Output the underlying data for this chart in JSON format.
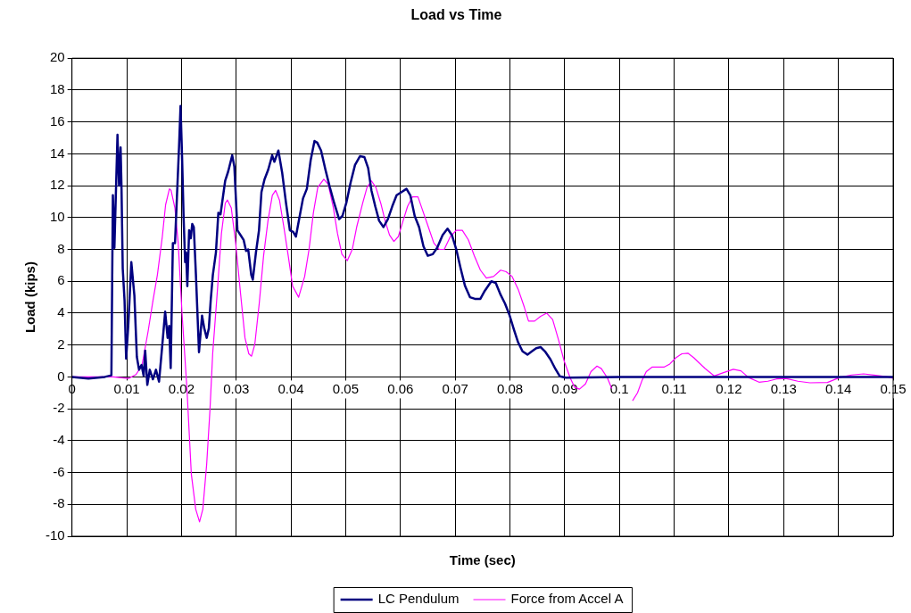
{
  "chart_data": {
    "type": "line",
    "title": "Load vs Time",
    "xlabel": "Time (sec)",
    "ylabel": "Load (kips)",
    "xlim": [
      0,
      0.15
    ],
    "ylim": [
      -10,
      20
    ],
    "xticks": [
      0,
      0.01,
      0.02,
      0.03,
      0.04,
      0.05,
      0.06,
      0.07,
      0.08,
      0.09,
      0.1,
      0.11,
      0.12,
      0.13,
      0.14,
      0.15
    ],
    "yticks": [
      -10,
      -8,
      -6,
      -4,
      -2,
      0,
      2,
      4,
      6,
      8,
      10,
      12,
      14,
      16,
      18,
      20
    ],
    "grid": true,
    "legend": "bottom",
    "marker": "none",
    "line_style": "solid",
    "series": [
      {
        "name": "LC Pendulum",
        "color": "#000080",
        "x": [
          0,
          0.003,
          0.006,
          0.0072,
          0.00747,
          0.00775,
          0.00831,
          0.0086,
          0.00888,
          0.00904,
          0.00927,
          0.0096,
          0.00989,
          0.01028,
          0.01084,
          0.0114,
          0.01185,
          0.01225,
          0.0127,
          0.01309,
          0.01337,
          0.01376,
          0.01421,
          0.01478,
          0.01534,
          0.0159,
          0.01646,
          0.01702,
          0.01747,
          0.01775,
          0.01803,
          0.01843,
          0.01882,
          0.01916,
          0.01955,
          0.01983,
          0.02011,
          0.02039,
          0.02067,
          0.02084,
          0.02107,
          0.0214,
          0.02169,
          0.02197,
          0.02225,
          0.02264,
          0.0232,
          0.02376,
          0.02416,
          0.02461,
          0.025,
          0.02534,
          0.02573,
          0.02629,
          0.02674,
          0.02713,
          0.02798,
          0.02854,
          0.02927,
          0.02966,
          0.03022,
          0.03079,
          0.03135,
          0.0318,
          0.03219,
          0.03275,
          0.03303,
          0.0336,
          0.03416,
          0.03461,
          0.03517,
          0.03584,
          0.03657,
          0.03697,
          0.0377,
          0.0384,
          0.0391,
          0.0398,
          0.0404,
          0.0409,
          0.0416,
          0.0422,
          0.0429,
          0.0436,
          0.0443,
          0.0448,
          0.0455,
          0.0463,
          0.0471,
          0.0479,
          0.0488,
          0.0494,
          0.0501,
          0.0509,
          0.0517,
          0.0526,
          0.0534,
          0.0541,
          0.0547,
          0.0554,
          0.0561,
          0.0569,
          0.0577,
          0.0585,
          0.0593,
          0.0602,
          0.0611,
          0.0618,
          0.0626,
          0.0634,
          0.0642,
          0.065,
          0.0659,
          0.0667,
          0.0677,
          0.0686,
          0.0694,
          0.0702,
          0.071,
          0.0718,
          0.0727,
          0.0736,
          0.0746,
          0.0754,
          0.0766,
          0.0774,
          0.0783,
          0.0791,
          0.0799,
          0.0807,
          0.0815,
          0.0823,
          0.0832,
          0.084,
          0.0848,
          0.0856,
          0.0864,
          0.0874,
          0.0883,
          0.0891,
          0.0902,
          0.1,
          0.11,
          0.12,
          0.13,
          0.14,
          0.15
        ],
        "values": [
          0,
          -0.1,
          0,
          0.1,
          11.4,
          8.1,
          15.2,
          12,
          14.4,
          12,
          6.8,
          4.8,
          1.15,
          3.2,
          7.2,
          5.1,
          1.25,
          0.45,
          0.75,
          0.06,
          1.65,
          -0.5,
          0.45,
          -0.15,
          0.45,
          -0.3,
          1.85,
          4.1,
          2.45,
          3.2,
          0.55,
          8.4,
          8.4,
          11.2,
          14.4,
          17,
          13.8,
          10,
          7.2,
          7.8,
          5.7,
          9.2,
          8.7,
          9.6,
          9.4,
          6.4,
          1.55,
          3.85,
          3.05,
          2.45,
          3.05,
          4.8,
          6.4,
          7.8,
          10.3,
          10.2,
          12.3,
          12.9,
          13.9,
          13.2,
          9.2,
          8.9,
          8.6,
          7.9,
          8,
          6.4,
          6.1,
          7.8,
          9.2,
          11.6,
          12.4,
          13,
          13.9,
          13.5,
          14.2,
          12.8,
          10.9,
          9.2,
          9.1,
          8.8,
          10.1,
          11.2,
          11.8,
          13.6,
          14.8,
          14.7,
          14.2,
          13,
          11.9,
          10.9,
          9.9,
          10.1,
          10.9,
          12.2,
          13.3,
          13.85,
          13.8,
          13.1,
          11.7,
          10.7,
          9.8,
          9.4,
          9.9,
          10.7,
          11.4,
          11.6,
          11.8,
          11.4,
          10.1,
          9.4,
          8.2,
          7.6,
          7.7,
          8.1,
          8.9,
          9.3,
          8.9,
          8,
          6.8,
          5.7,
          5,
          4.9,
          4.9,
          5.4,
          6,
          5.9,
          5.15,
          4.6,
          3.9,
          3,
          2.16,
          1.6,
          1.4,
          1.6,
          1.8,
          1.87,
          1.6,
          1.1,
          0.5,
          0.04,
          -0.05,
          0,
          0,
          0,
          0,
          0,
          0
        ]
      },
      {
        "name": "Force from Accel A",
        "color": "#ff00ff",
        "x": [
          0,
          0.0047,
          0.0075,
          0.0103,
          0.0117,
          0.0128,
          0.0139,
          0.0148,
          0.0156,
          0.0165,
          0.0171,
          0.0178,
          0.0181,
          0.0188,
          0.0194,
          0.0201,
          0.021,
          0.0218,
          0.0226,
          0.0233,
          0.0239,
          0.0246,
          0.0252,
          0.0257,
          0.0266,
          0.0273,
          0.028,
          0.0284,
          0.0291,
          0.0299,
          0.0308,
          0.0316,
          0.0323,
          0.0328,
          0.0334,
          0.0342,
          0.035,
          0.0358,
          0.0366,
          0.0372,
          0.0379,
          0.0387,
          0.0395,
          0.0403,
          0.0414,
          0.0425,
          0.0433,
          0.0441,
          0.0449,
          0.046,
          0.0468,
          0.0477,
          0.0485,
          0.0493,
          0.0503,
          0.0512,
          0.052,
          0.0531,
          0.0539,
          0.0547,
          0.0555,
          0.0564,
          0.0572,
          0.058,
          0.0588,
          0.0596,
          0.0604,
          0.0613,
          0.0622,
          0.0632,
          0.064,
          0.0651,
          0.0661,
          0.0671,
          0.068,
          0.0691,
          0.0702,
          0.0713,
          0.0724,
          0.0735,
          0.0746,
          0.0757,
          0.077,
          0.0783,
          0.0793,
          0.0804,
          0.0815,
          0.0826,
          0.0834,
          0.0845,
          0.0856,
          0.0867,
          0.0878,
          0.0889,
          0.0899,
          0.091,
          0.0918,
          0.0927,
          0.0938,
          0.0948,
          0.0959,
          0.0967,
          0.0978,
          0.0986,
          0.1,
          0.1024,
          0.1033,
          0.1041,
          0.1049,
          0.106,
          0.1071,
          0.1082,
          0.1092,
          0.1103,
          0.1114,
          0.1125,
          0.1136,
          0.1156,
          0.1173,
          0.1189,
          0.1208,
          0.1222,
          0.1236,
          0.1255,
          0.1271,
          0.1287,
          0.1304,
          0.1326,
          0.1348,
          0.138,
          0.1402,
          0.1424,
          0.1446,
          0.1468,
          0.149,
          0.15
        ],
        "values": [
          0,
          0,
          0,
          -0.1,
          0.15,
          0.75,
          2.85,
          4.8,
          6.4,
          8.8,
          10.8,
          11.8,
          11.7,
          10.6,
          8.4,
          4,
          -0.75,
          -6.1,
          -8.3,
          -9.1,
          -8.3,
          -5.5,
          -2.1,
          1.45,
          5.6,
          9,
          10.9,
          11.1,
          10.6,
          8.4,
          5.2,
          2.45,
          1.45,
          1.3,
          2.05,
          4.6,
          7.6,
          9.8,
          11.4,
          11.7,
          11.1,
          9.4,
          7.6,
          5.7,
          5,
          6.3,
          8,
          10.3,
          11.9,
          12.4,
          12.1,
          10.7,
          9,
          7.7,
          7.3,
          8,
          9.4,
          10.9,
          11.9,
          12.3,
          11.9,
          10.9,
          9.8,
          8.9,
          8.5,
          8.8,
          9.7,
          10.7,
          11.3,
          11.3,
          10.5,
          9.4,
          8.4,
          8,
          8,
          8.8,
          9.2,
          9.2,
          8.6,
          7.6,
          6.7,
          6.2,
          6.3,
          6.7,
          6.6,
          6.3,
          5.5,
          4.4,
          3.5,
          3.5,
          3.8,
          4,
          3.6,
          2.3,
          1,
          -0.06,
          -0.64,
          -0.77,
          -0.44,
          0.33,
          0.68,
          0.52,
          -0.06,
          -0.73,
          null,
          -1.5,
          -1,
          -0.25,
          0.33,
          0.62,
          0.62,
          0.62,
          0.81,
          1.2,
          1.45,
          1.49,
          1.2,
          0.54,
          0.06,
          0.25,
          0.48,
          0.38,
          -0.04,
          -0.33,
          -0.27,
          -0.13,
          -0.1,
          -0.27,
          -0.37,
          -0.35,
          -0.04,
          0.12,
          0.19,
          0.1,
          0,
          -0.08
        ]
      }
    ]
  }
}
